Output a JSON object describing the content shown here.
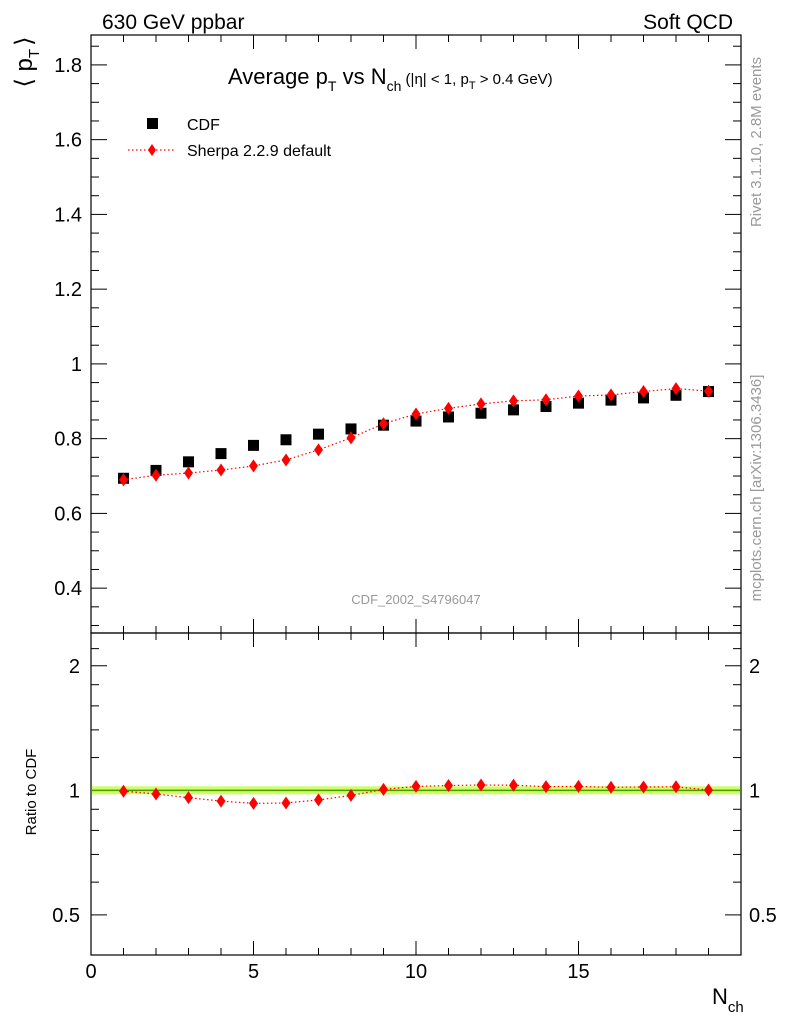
{
  "header": {
    "left": "630 GeV ppbar",
    "right": "Soft QCD"
  },
  "side_labels": {
    "rivet": "Rivet 3.1.10,  2.8M events",
    "mcplots": "mcplots.cern.ch [arXiv:1306.3436]"
  },
  "chart_data": {
    "type": "scatter",
    "title": {
      "main": "Average p",
      "main_sub": "T",
      "vs": " vs N",
      "vs_sub": "ch",
      "cuts_a": " (|η| < 1, p",
      "cuts_sub": "T",
      "cuts_b": " > 0.4 GeV)"
    },
    "ylabel": {
      "base": "⟨ p",
      "sub": "T",
      "close": "⟩"
    },
    "xlabel": {
      "base": "N",
      "sub": "ch"
    },
    "ratio_ylabel": "Ratio to CDF",
    "analysis_id": "CDF_2002_S4796047",
    "xlim": [
      0,
      20
    ],
    "ylim": [
      0.28,
      1.88
    ],
    "ratio_ylim": [
      0.4,
      2.4
    ],
    "ratio_scale": "log",
    "legend_position": "top-left",
    "x_ticks": [
      0,
      5,
      10,
      15
    ],
    "x_tick_labels": [
      "0",
      "5",
      "10",
      "15"
    ],
    "y_ticks": [
      0.4,
      0.6,
      0.8,
      1.0,
      1.2,
      1.4,
      1.6,
      1.8
    ],
    "y_tick_labels": [
      "0.4",
      "0.6",
      "0.8",
      "1",
      "1.2",
      "1.4",
      "1.6",
      "1.8"
    ],
    "ratio_ticks": [
      0.5,
      1,
      2
    ],
    "ratio_tick_labels": [
      "0.5",
      "1",
      "2"
    ],
    "ratio_band_color": "#ccff66",
    "ratio_line_color": "#4a9a00",
    "x": [
      1,
      2,
      3,
      4,
      5,
      6,
      7,
      8,
      9,
      10,
      11,
      12,
      13,
      14,
      15,
      16,
      17,
      18,
      19
    ],
    "series": [
      {
        "name": "CDF",
        "color": "#000000",
        "marker": "square",
        "values": [
          0.694,
          0.715,
          0.738,
          0.76,
          0.782,
          0.797,
          0.812,
          0.826,
          0.836,
          0.847,
          0.858,
          0.868,
          0.877,
          0.886,
          0.895,
          0.903,
          0.909,
          0.916,
          0.926
        ]
      },
      {
        "name": "Sherpa 2.2.9 default",
        "color": "#ff0000",
        "marker": "diamond",
        "line": "dotted",
        "values": [
          0.69,
          0.702,
          0.708,
          0.716,
          0.727,
          0.743,
          0.77,
          0.802,
          0.84,
          0.866,
          0.881,
          0.893,
          0.901,
          0.904,
          0.914,
          0.917,
          0.926,
          0.934,
          0.927
        ]
      }
    ],
    "ratio_values": [
      0.995,
      0.98,
      0.96,
      0.942,
      0.93,
      0.932,
      0.948,
      0.972,
      1.005,
      1.022,
      1.027,
      1.03,
      1.029,
      1.021,
      1.022,
      1.017,
      1.019,
      1.02,
      1.002
    ]
  }
}
